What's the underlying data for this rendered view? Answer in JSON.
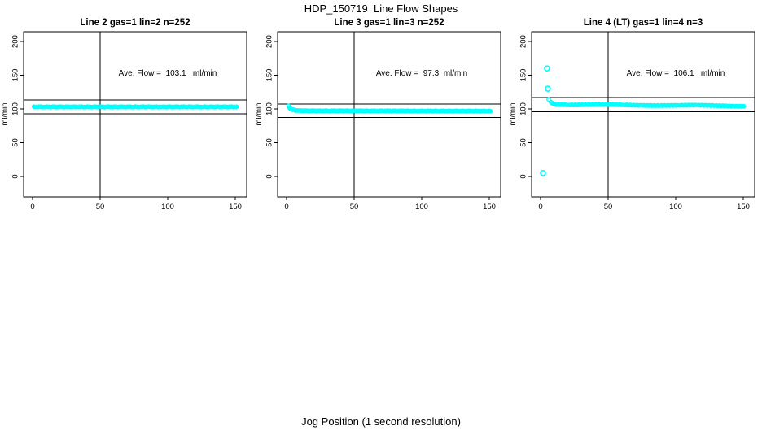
{
  "figure": {
    "title": "HDP_150719  Line Flow Shapes",
    "xlabel": "Jog Position (1 second resolution)",
    "background": "#ffffff"
  },
  "style": {
    "point_color": "#00ffff",
    "axis_color": "#000000",
    "ref_line_color": "#000000",
    "text_color": "#000000"
  },
  "chart_data": [
    {
      "type": "scatter",
      "title": "Line 2 gas=1 lin=2 n=252",
      "ylabel": "ml/min",
      "n": 252,
      "ave_flow": 103.1,
      "ave_flow_text": "Ave. Flow =  103.1   ml/min",
      "xlim": [
        0,
        150
      ],
      "ylim": [
        0,
        200
      ],
      "xticks": [
        0,
        50,
        100,
        150
      ],
      "yticks": [
        0,
        50,
        100,
        150,
        200
      ],
      "vline_x": 50,
      "ref_lines_y": [
        113.4,
        92.8
      ],
      "band_profile": [
        [
          1,
          103
        ],
        [
          151,
          103
        ]
      ],
      "outliers": [],
      "marker_step": 0.6,
      "jitter": 0.5
    },
    {
      "type": "scatter",
      "title": "Line 3 gas=1 lin=3 n=252",
      "ylabel": "ml/min",
      "n": 252,
      "ave_flow": 97.3,
      "ave_flow_text": "Ave. Flow =  97.3  ml/min",
      "xlim": [
        0,
        150
      ],
      "ylim": [
        0,
        200
      ],
      "xticks": [
        0,
        50,
        100,
        150
      ],
      "yticks": [
        0,
        50,
        100,
        150,
        200
      ],
      "vline_x": 50,
      "ref_lines_y": [
        107.0,
        87.6
      ],
      "band_profile": [
        [
          1.5,
          104.5
        ],
        [
          2.5,
          101
        ],
        [
          4,
          99
        ],
        [
          7,
          97.8
        ],
        [
          15,
          97.2
        ],
        [
          151,
          96.8
        ]
      ],
      "outliers": [],
      "marker_step": 0.6,
      "jitter": 0.5
    },
    {
      "type": "scatter",
      "title": "Line 4 (LT) gas=1 lin=4 n=3",
      "ylabel": "ml/min",
      "n": 3,
      "ave_flow": 106.1,
      "ave_flow_text": "Ave. Flow =  106.1   ml/min",
      "xlim": [
        0,
        150
      ],
      "ylim": [
        0,
        200
      ],
      "xticks": [
        0,
        50,
        100,
        150
      ],
      "yticks": [
        0,
        50,
        100,
        150,
        200
      ],
      "vline_x": 50,
      "ref_lines_y": [
        116.7,
        95.5
      ],
      "band_profile": [
        [
          6,
          114.5
        ],
        [
          7.5,
          110.5
        ],
        [
          9,
          108.5
        ],
        [
          12,
          107
        ],
        [
          25,
          106.2
        ],
        [
          60,
          105.8
        ],
        [
          100,
          105.3
        ],
        [
          151,
          104.3
        ]
      ],
      "outliers": [
        [
          4.8,
          160
        ],
        [
          5.4,
          130
        ],
        [
          1.8,
          5
        ]
      ],
      "marker_step": 0.85,
      "jitter": 0.9
    }
  ]
}
